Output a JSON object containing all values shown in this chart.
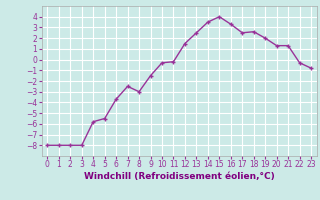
{
  "x": [
    0,
    1,
    2,
    3,
    4,
    5,
    6,
    7,
    8,
    9,
    10,
    11,
    12,
    13,
    14,
    15,
    16,
    17,
    18,
    19,
    20,
    21,
    22,
    23
  ],
  "y": [
    -8,
    -8,
    -8,
    -8,
    -5.8,
    -5.5,
    -3.7,
    -2.5,
    -3.0,
    -1.5,
    -0.3,
    -0.2,
    1.5,
    2.5,
    3.5,
    4.0,
    3.3,
    2.5,
    2.6,
    2.0,
    1.3,
    1.3,
    -0.3,
    -0.8
  ],
  "line_color": "#993399",
  "marker": "+",
  "marker_size": 3,
  "marker_linewidth": 1.0,
  "line_width": 1.0,
  "bg_color": "#cceae7",
  "grid_color": "#ffffff",
  "xlabel": "Windchill (Refroidissement éolien,°C)",
  "xlabel_fontsize": 6.5,
  "xlabel_color": "#800080",
  "tick_fontsize": 5.5,
  "ytick_fontsize": 5.5,
  "ylim": [
    -9,
    5
  ],
  "xlim": [
    -0.5,
    23.5
  ],
  "yticks": [
    -8,
    -7,
    -6,
    -5,
    -4,
    -3,
    -2,
    -1,
    0,
    1,
    2,
    3,
    4
  ],
  "xticks": [
    0,
    1,
    2,
    3,
    4,
    5,
    6,
    7,
    8,
    9,
    10,
    11,
    12,
    13,
    14,
    15,
    16,
    17,
    18,
    19,
    20,
    21,
    22,
    23
  ]
}
